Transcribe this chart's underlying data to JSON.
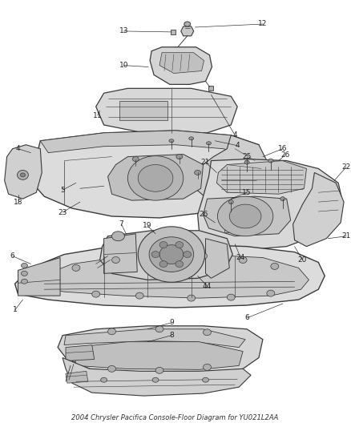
{
  "title": "2004 Chrysler Pacifica Console-Floor Diagram for YU021L2AA",
  "background_color": "#ffffff",
  "line_color": "#3a3a3a",
  "label_color": "#222222",
  "label_fontsize": 6.5,
  "title_fontsize": 6.0,
  "fig_width": 4.38,
  "fig_height": 5.33,
  "dpi": 100
}
